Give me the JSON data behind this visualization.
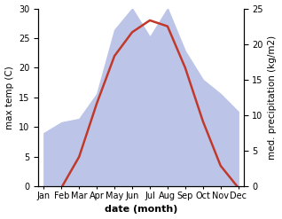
{
  "months": [
    "Jan",
    "Feb",
    "Mar",
    "Apr",
    "May",
    "Jun",
    "Jul",
    "Aug",
    "Sep",
    "Oct",
    "Nov",
    "Dec"
  ],
  "temperature": [
    -0.5,
    -0.2,
    5.0,
    14.0,
    22.0,
    26.0,
    28.0,
    27.0,
    20.0,
    11.0,
    3.5,
    -0.2
  ],
  "precipitation": [
    7.5,
    9.0,
    9.5,
    13.0,
    22.0,
    25.0,
    21.0,
    25.0,
    19.0,
    15.0,
    13.0,
    10.5
  ],
  "temp_color": "#c0392b",
  "precip_fill_color": "#bcc5e8",
  "background_color": "#ffffff",
  "xlabel": "date (month)",
  "ylabel_left": "max temp (C)",
  "ylabel_right": "med. precipitation (kg/m2)",
  "ylim_left": [
    0,
    30
  ],
  "ylim_right": [
    0,
    25
  ],
  "yticks_left": [
    0,
    5,
    10,
    15,
    20,
    25,
    30
  ],
  "yticks_right": [
    0,
    5,
    10,
    15,
    20,
    25
  ],
  "temp_linewidth": 1.8,
  "xlabel_fontsize": 8,
  "ylabel_fontsize": 7.5,
  "tick_fontsize": 7
}
